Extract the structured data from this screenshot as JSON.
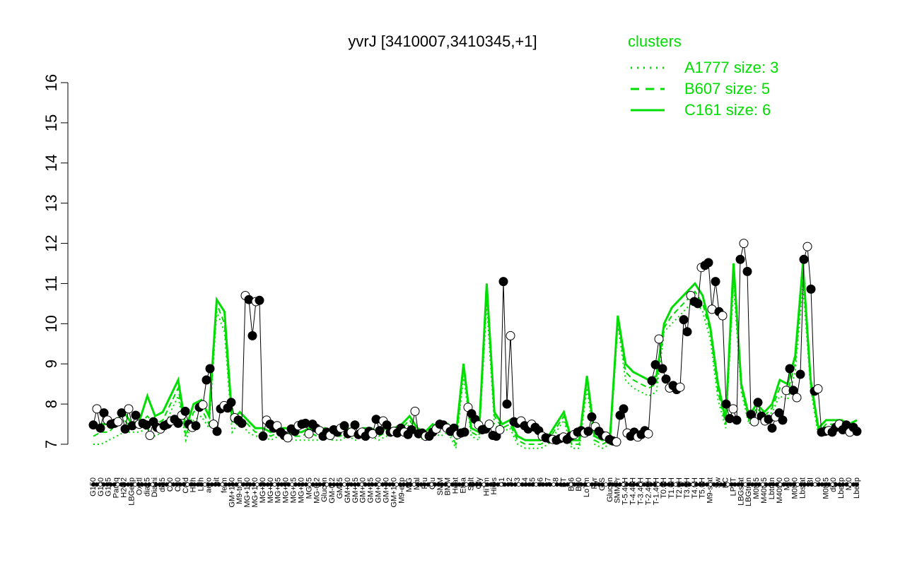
{
  "chart_data": {
    "type": "line",
    "title": "yvrJ [3410007,3410345,+1]",
    "xlabel": "",
    "ylabel": "",
    "ylim": [
      7,
      16
    ],
    "yticks": [
      7,
      8,
      9,
      10,
      11,
      12,
      13,
      14,
      15,
      16
    ],
    "grid": false,
    "legend_position": "top-right",
    "colors": {
      "accent": "#00dd00",
      "point_dark": "#000000",
      "point_light": "#ffffff",
      "axis": "#000000"
    },
    "x_tick_labels": [
      "G150",
      "G180",
      "G135",
      "Paraq",
      "H2O2",
      "LBGexp",
      "Oxctl",
      "dia15",
      "Diami",
      "dia5",
      "C90",
      "C30",
      "Cold",
      "HPh",
      "LPh",
      "aero",
      "nit",
      "ferm",
      "GM+150",
      "M9-tran",
      "MG+150",
      "MG+120",
      "MG+90",
      "MG+60",
      "MG+45",
      "MG+30",
      "MG+15",
      "MG+10",
      "MG+5",
      "MG-0.2",
      "Glucon",
      "GM-0.2",
      "GM+5",
      "GM+10",
      "GM+15",
      "GM+30",
      "GM+45",
      "GM+60",
      "GM+90",
      "GM+120",
      "M9-exp",
      "M/G",
      "Mal",
      "Fru",
      "Glu",
      "SMM",
      "BMM",
      "Heat",
      "Etha",
      "Salt",
      "Gly",
      "HiTm",
      "HiOs",
      "S1",
      "S2",
      "S3",
      "S4",
      "S5",
      "S6",
      "S7",
      "S8",
      "BT",
      "B36",
      "B60",
      "LoTm",
      "Pyr",
      "G/S",
      "Glucon",
      "SMMPr",
      "T-5.40H",
      "T-4.40H",
      "T-3.40H",
      "T-2.40H",
      "T-1.40H",
      "T0.0H",
      "T1.0H",
      "T2.0H",
      "T3.0H",
      "T4.0H",
      "T5.0H",
      "M9-stat",
      "Sw",
      "BC",
      "LPhT",
      "LBGstat",
      "LBGtran",
      "M0t45",
      "M40t45",
      "Lbtran",
      "M40t90",
      "Mt0",
      "M0t90",
      "Lbstat",
      "BI",
      "S0",
      "M0t45",
      "dia0",
      "Lbexp",
      "Mt0",
      "Lbexp"
    ],
    "axis_labels_rendered": [
      "G150",
      "G180",
      "Paraq",
      "LBGexp",
      "Diami",
      "Cold",
      "HPh",
      "nit",
      "GM+150",
      "MG+150",
      "MG+90",
      "MG+60",
      "MG+45",
      "MG+30",
      "MG+15",
      "MG+10",
      "MG+5",
      "MG-0.2",
      "Glucon",
      "GM-0.2",
      "GM+5",
      "GM+10",
      "GM+15",
      "GM+30",
      "GM+45",
      "GM+60",
      "GM+90",
      "GM+120",
      "M/G",
      "Fru",
      "SMM",
      "BMM",
      "Heat",
      "Salt",
      "HiTm",
      "S1",
      "S3",
      "S4",
      "S3",
      "S6",
      "S8",
      "BT",
      "B60",
      "Pyr",
      "Glucon",
      "BC",
      "LBGtran",
      "M40t45",
      "Mt0",
      "M40t90",
      "Lbstat",
      "S0",
      "dia0",
      "Mt0",
      "G135",
      "H2O2",
      "Oxctl",
      "dia15",
      "dia5",
      "C90",
      "C30",
      "LPh",
      "aero",
      "ferm",
      "M9-tran",
      "MG+120",
      "MG+90",
      "MG+60",
      "MG+45",
      "MG+30",
      "MG+15",
      "MG+10",
      "MG+5",
      "MG-0.2",
      "M9-exp",
      "Mal",
      "Glu",
      "Etha",
      "Gly",
      "HiOs",
      "S2",
      "S5",
      "S7",
      "S6",
      "B36",
      "LoTm",
      "G/S",
      "SMMPr",
      "T-5.40H",
      "T-4.40H",
      "T-3.40H",
      "T-2.40H",
      "T-1.40H",
      "T0.0H",
      "T1.0H",
      "T2.0H",
      "T3.0H",
      "T4.0H",
      "T5.0H",
      "M9-stat",
      "Sw",
      "LPhT",
      "LBGstat",
      "M0t45",
      "Lbtran",
      "M40t45",
      "M0t90",
      "BI",
      "M0t45",
      "Lbexp",
      "Mt0",
      "Lbexp"
    ],
    "top_labels": [
      "G135",
      "H2O2",
      "Oxctl",
      "dia15",
      "dia5",
      "C30",
      "C90",
      "LPh",
      "HPh",
      "aero",
      "nit",
      "ferm",
      "GM+150",
      "MG+150",
      "M9-tran",
      "MG+120",
      "MG+90",
      "MG+60",
      "MG+45",
      "MG+30",
      "MG+15",
      "MG+10",
      "MG+5",
      "MG-0.2",
      "GM-0.2",
      "GM+5",
      "GM+10",
      "GM+15",
      "GM+30",
      "GM+45",
      "GM+60",
      "GM+90",
      "GM+120",
      "M9-exp",
      "M/G",
      "Mal",
      "Fru",
      "Glu",
      "SMM",
      "BMM",
      "Heat",
      "Etha",
      "Salt",
      "Gly",
      "HiTm",
      "HiOs",
      "S1",
      "S2",
      "S3",
      "S4",
      "S5",
      "S6",
      "S7",
      "S8",
      "BT",
      "B36",
      "B60",
      "LoTm",
      "Pyr",
      "G/S",
      "Glucon",
      "SMMPr",
      "T-5.40H",
      "T-4.40H",
      "T-3.40H",
      "T-2.40H",
      "T-1.40H",
      "T0.0H",
      "T1.0H",
      "T2.0H",
      "T3.0H",
      "T4.0H",
      "T5.0H",
      "M9-stat",
      "Sw",
      "BC",
      "LPhT",
      "LBGstat",
      "LBGtran",
      "M0t45",
      "M40t45",
      "Lbtran",
      "Mt0",
      "M40t90",
      "M0t90",
      "Lbstat",
      "BI",
      "S0",
      "M0t45",
      "dia0",
      "Lbexp",
      "Mt0",
      "Lbexp"
    ],
    "tick_labels_shown": [
      "G150",
      "G180",
      "G135",
      "Paraq",
      "H2O2",
      "LBGexp",
      "Oxctl",
      "dia15",
      "Diami",
      "dia5",
      "C90",
      "C30",
      "Cold",
      "HPh",
      "LPh",
      "nit",
      "aero",
      "ferm",
      "GM+150",
      "M9-tran",
      "MG+150",
      "MG+120",
      "MG+90",
      "MG+60",
      "MG+45",
      "MG+30",
      "MG+15",
      "MG+10",
      "MG+5",
      "MG-0.2",
      "Glucon",
      "GM-0.2",
      "GM+5",
      "GM+10",
      "GM+15",
      "GM+30",
      "GM+45",
      "GM+60",
      "GM+90",
      "GM+120",
      "M9-exp",
      "M/G",
      "Mal",
      "Fru",
      "Glu",
      "SMM",
      "BMM",
      "Heat",
      "Etha",
      "Salt",
      "Gly",
      "HiTm",
      "HiOs",
      "S1",
      "S2",
      "S3",
      "S4",
      "S5",
      "S6",
      "S7",
      "S8",
      "BT",
      "B36",
      "B60",
      "LoTm",
      "Pyr",
      "G/S",
      "Glucon",
      "SMMPr",
      "T-5.40H",
      "T-4.40H",
      "T-3.40H",
      "T-2.40H",
      "T-1.40H",
      "T0.0H",
      "T1.0H",
      "T2.0H",
      "T3.0H",
      "T4.0H",
      "T5.0H",
      "M9-stat",
      "Sw",
      "BC",
      "LPhT",
      "LBGstat",
      "LBGtran",
      "M0t45",
      "M40t45",
      "Lbtran",
      "Mt0",
      "M40t90",
      "M0t90",
      "Lbstat",
      "BI",
      "S0",
      "M0t45",
      "dia0",
      "Lbexp",
      "Mt0",
      "Lbexp"
    ],
    "series": [
      {
        "name": "A1777 size: 3",
        "style": "dotted",
        "values": [
          7.0,
          7.0,
          7.1,
          7.2,
          7.3,
          7.3,
          7.3,
          7.4,
          7.2,
          7.3,
          7.8,
          8.2,
          7.1,
          7.6,
          7.7,
          7.4,
          10.3,
          9.8,
          7.3,
          7.6,
          7.3,
          7.2,
          7.2,
          7.1,
          7.2,
          7.2,
          7.1,
          7.1,
          7.1,
          7.1,
          7.2,
          7.1,
          7.1,
          7.2,
          7.1,
          7.2,
          7.2,
          7.1,
          7.2,
          7.2,
          7.3,
          7.5,
          7.2,
          7.1,
          7.3,
          7.2,
          7.3,
          6.9,
          8.7,
          7.2,
          7.1,
          10.5,
          7.5,
          7.3,
          7.4,
          7.0,
          6.9,
          6.9,
          6.9,
          7.0,
          7.3,
          7.6,
          6.9,
          6.9,
          8.4,
          7.0,
          6.9,
          7.0,
          10.0,
          8.6,
          8.4,
          8.3,
          8.2,
          8.3,
          9.8,
          10.0,
          10.2,
          10.4,
          10.6,
          10.3,
          9.6,
          8.1,
          7.4,
          11.0,
          8.3,
          7.5,
          7.8,
          7.6,
          7.8,
          8.2,
          8.1,
          8.8,
          11.0,
          8.4,
          7.2,
          7.4,
          7.4,
          7.4,
          7.3,
          7.4
        ]
      },
      {
        "name": "B607 size: 5",
        "style": "dashed",
        "values": [
          7.2,
          7.3,
          7.3,
          7.5,
          7.6,
          7.4,
          7.5,
          7.7,
          7.5,
          7.6,
          8.0,
          8.4,
          7.2,
          7.8,
          7.9,
          7.5,
          10.5,
          10.0,
          7.5,
          7.7,
          7.5,
          7.3,
          7.3,
          7.2,
          7.3,
          7.3,
          7.2,
          7.2,
          7.3,
          7.2,
          7.3,
          7.2,
          7.2,
          7.3,
          7.2,
          7.3,
          7.3,
          7.2,
          7.3,
          7.3,
          7.4,
          7.6,
          7.3,
          7.2,
          7.4,
          7.3,
          7.4,
          7.0,
          8.9,
          7.3,
          7.2,
          10.8,
          7.7,
          7.4,
          7.5,
          7.1,
          7.0,
          7.0,
          7.0,
          7.1,
          7.4,
          7.7,
          7.0,
          7.0,
          8.6,
          7.1,
          7.0,
          7.1,
          10.1,
          8.8,
          8.6,
          8.5,
          8.4,
          8.5,
          9.9,
          10.2,
          10.4,
          10.6,
          10.8,
          10.5,
          9.8,
          8.3,
          7.5,
          11.3,
          8.4,
          7.6,
          7.9,
          7.7,
          7.9,
          8.4,
          8.3,
          9.0,
          11.3,
          8.5,
          7.3,
          7.5,
          7.5,
          7.5,
          7.4,
          7.5
        ]
      },
      {
        "name": "C161 size: 6",
        "style": "solid",
        "values": [
          7.4,
          7.5,
          7.5,
          7.6,
          7.8,
          7.5,
          7.6,
          8.2,
          7.7,
          7.8,
          8.2,
          8.6,
          7.4,
          8.0,
          8.1,
          7.7,
          10.6,
          10.3,
          7.6,
          7.8,
          7.6,
          7.4,
          7.4,
          7.3,
          7.4,
          7.4,
          7.3,
          7.3,
          7.4,
          7.3,
          7.4,
          7.3,
          7.3,
          7.4,
          7.3,
          7.4,
          7.4,
          7.3,
          7.4,
          7.4,
          7.5,
          7.7,
          7.4,
          7.3,
          7.5,
          7.4,
          7.5,
          7.2,
          9.0,
          7.4,
          7.3,
          11.0,
          7.8,
          7.5,
          7.6,
          7.2,
          7.1,
          7.1,
          7.1,
          7.2,
          7.5,
          7.8,
          7.1,
          7.1,
          8.7,
          7.2,
          7.1,
          7.2,
          10.2,
          9.0,
          8.8,
          8.7,
          8.6,
          8.7,
          10.0,
          10.4,
          10.6,
          10.8,
          11.0,
          10.7,
          9.9,
          8.5,
          7.6,
          11.5,
          8.5,
          7.7,
          8.0,
          7.8,
          8.0,
          8.6,
          8.5,
          9.2,
          11.5,
          8.6,
          7.4,
          7.6,
          7.6,
          7.6,
          7.5,
          7.6
        ]
      }
    ],
    "points": [
      7.48,
      7.88,
      7.4,
      7.78,
      7.6,
      7.5,
      7.52,
      7.56,
      7.78,
      7.38,
      7.88,
      7.46,
      7.72,
      7.5,
      7.52,
      7.48,
      7.22,
      7.56,
      7.42,
      7.38,
      7.46,
      7.5,
      7.58,
      7.62,
      7.52,
      7.72,
      7.82,
      7.5,
      7.42,
      7.46,
      7.92,
      7.98,
      8.6,
      8.88,
      7.5,
      7.32,
      7.88,
      7.96,
      7.9,
      8.04,
      7.66,
      7.6,
      7.52,
      10.7,
      10.6,
      9.7,
      10.55,
      10.58,
      7.2,
      7.6,
      7.5,
      7.4,
      7.46,
      7.3,
      7.22,
      7.16,
      7.38,
      7.32,
      7.46,
      7.5,
      7.52,
      7.26,
      7.5,
      7.4,
      7.34,
      7.2,
      7.3,
      7.22,
      7.36,
      7.3,
      7.4,
      7.46,
      7.26,
      7.3,
      7.48,
      7.24,
      7.3,
      7.2,
      7.32,
      7.26,
      7.62,
      7.34,
      7.58,
      7.48,
      7.3,
      7.32,
      7.28,
      7.4,
      7.3,
      7.24,
      7.36,
      7.82,
      7.26,
      7.28,
      7.2,
      7.2,
      7.3,
      7.38,
      7.5,
      7.48,
      7.4,
      7.32,
      7.4,
      7.24,
      7.28,
      7.3,
      7.92,
      7.76,
      7.62,
      7.48,
      7.36,
      7.38,
      7.5,
      7.22,
      7.2,
      7.36,
      11.05,
      8.0,
      9.7,
      7.56,
      7.52,
      7.58,
      7.46,
      7.38,
      7.5,
      7.42,
      7.34,
      7.2,
      7.16,
      7.14,
      7.12,
      7.1,
      7.14,
      7.18,
      7.12,
      7.2,
      7.24,
      7.3,
      7.34,
      7.28,
      7.32,
      7.68,
      7.44,
      7.32,
      7.22,
      7.2,
      7.12,
      7.08,
      7.06,
      7.72,
      7.88,
      7.28,
      7.2,
      7.3,
      7.18,
      7.24,
      7.34,
      7.26,
      8.58,
      8.98,
      9.62,
      8.88,
      8.62,
      8.4,
      8.46,
      8.36,
      8.42,
      10.1,
      9.8,
      10.7,
      10.55,
      10.5,
      11.4,
      11.45,
      11.52,
      10.36,
      11.05,
      10.3,
      10.2,
      8.0,
      7.64,
      7.88,
      7.6,
      11.6,
      12.0,
      11.3,
      7.74,
      7.56,
      8.04,
      7.7,
      7.58,
      7.62,
      7.4,
      7.68,
      7.78,
      7.6,
      8.34,
      8.88,
      8.34,
      8.16,
      8.74,
      11.6,
      11.92,
      10.86,
      8.32,
      8.38,
      7.3,
      7.32,
      7.34,
      7.3,
      7.42,
      7.5,
      7.36,
      7.48,
      7.3,
      7.42,
      7.32
    ],
    "legend": {
      "title": "clusters",
      "entries": [
        "A1777 size: 3",
        "B607 size: 5",
        "C161 size: 6"
      ]
    }
  }
}
